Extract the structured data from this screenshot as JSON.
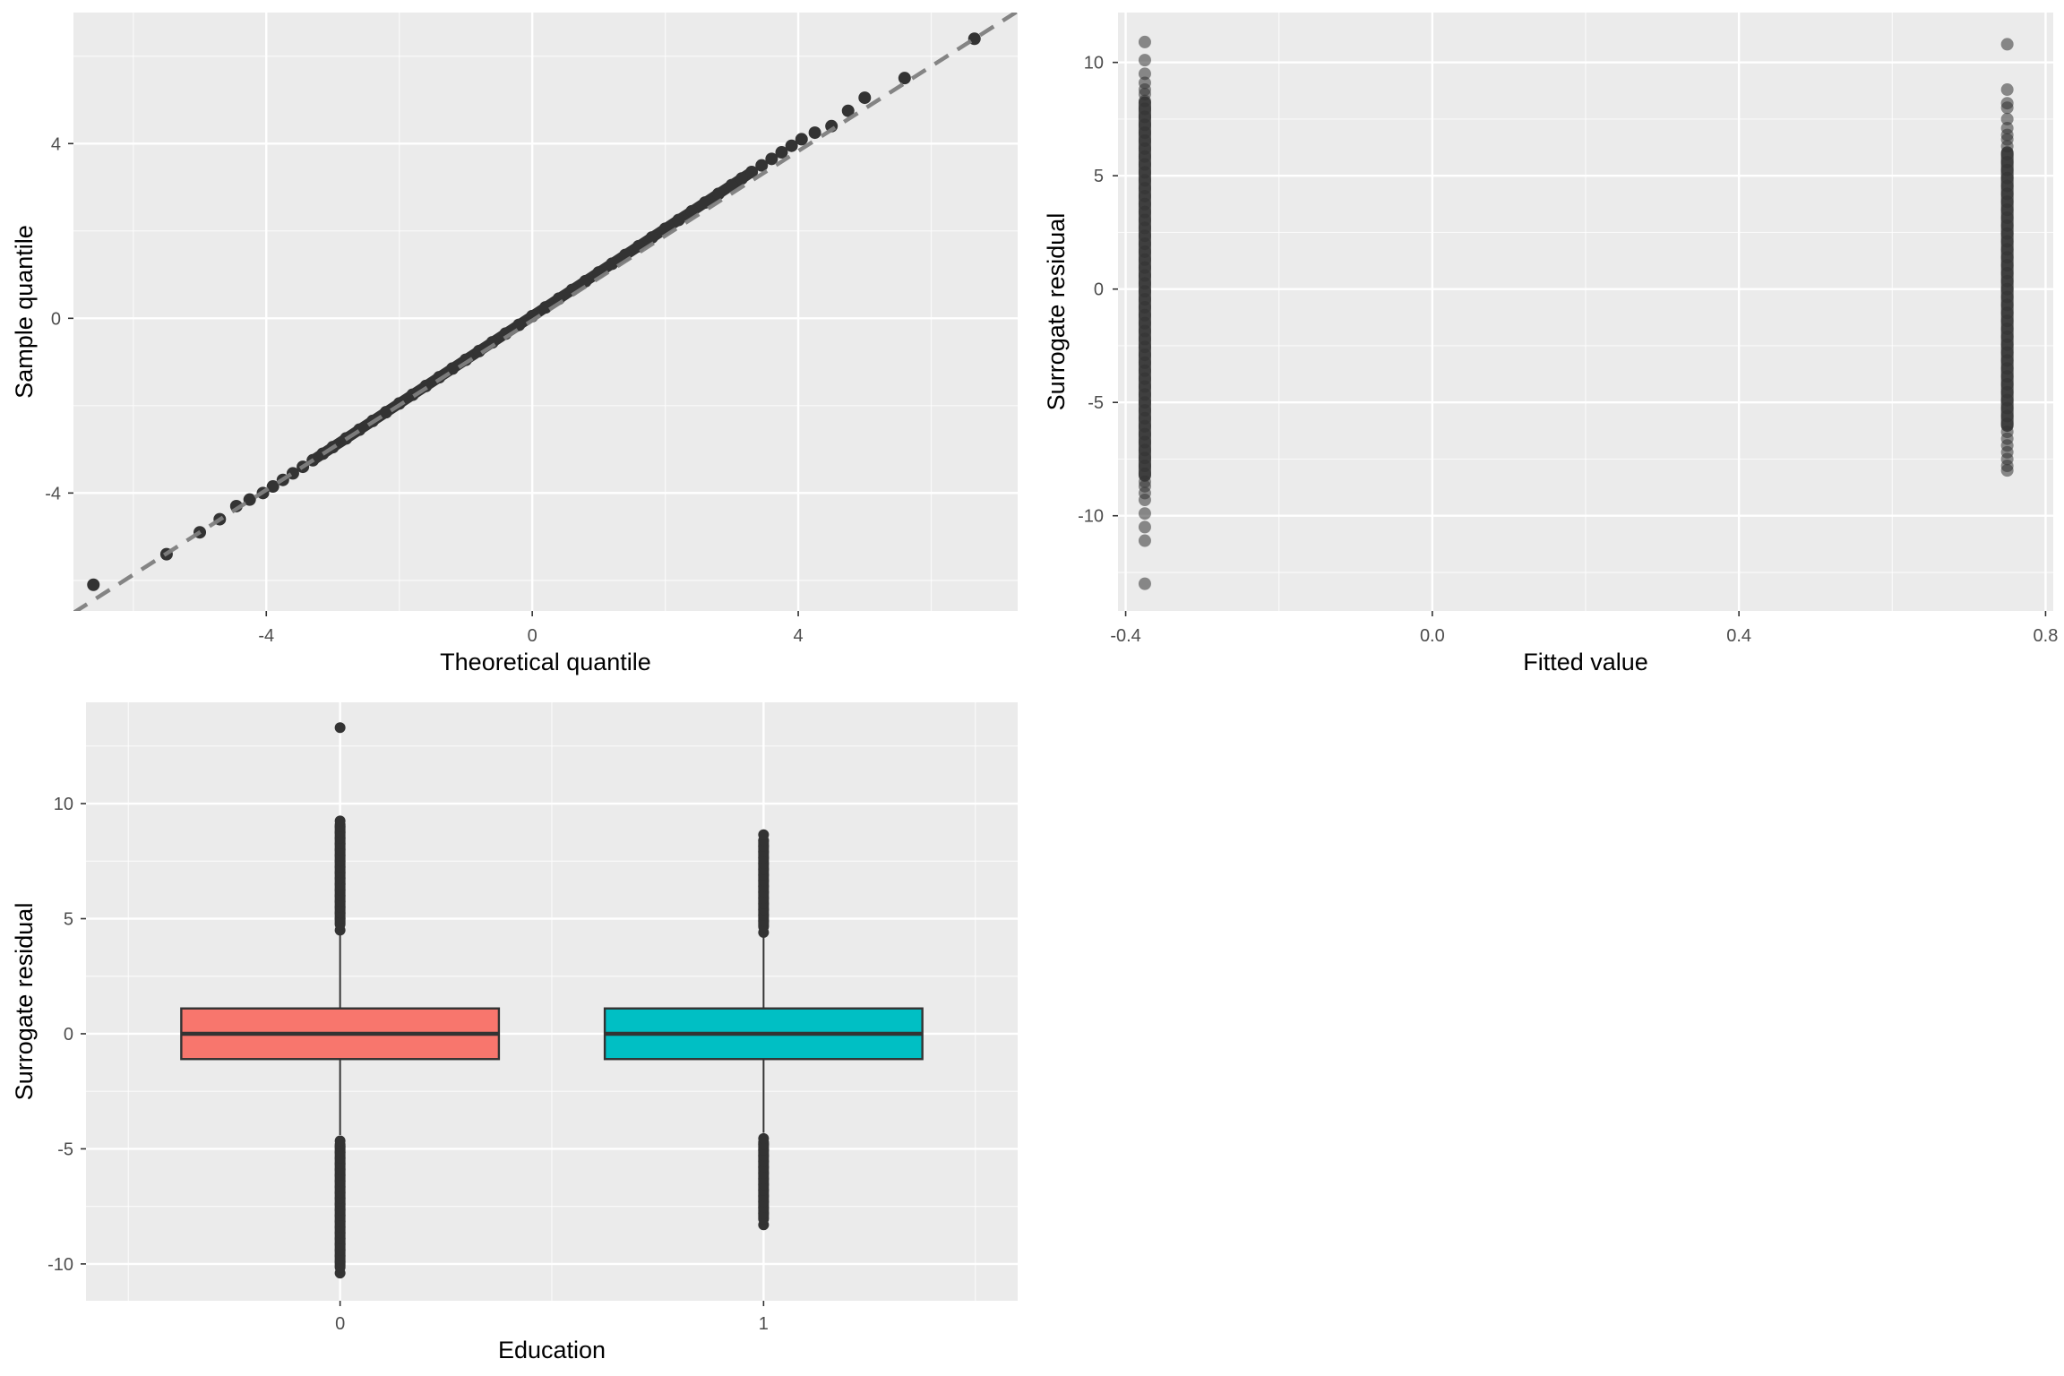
{
  "chart_data": [
    {
      "type": "scatter",
      "subtype": "qq-plot",
      "xlabel": "Theoretical quantile",
      "ylabel": "Sample quantile",
      "xlim": [
        -6.9,
        7.3
      ],
      "ylim": [
        -6.7,
        7.0
      ],
      "xticks": [
        -4,
        0,
        4
      ],
      "yticks": [
        -4,
        0,
        4
      ],
      "xtick_labels": [
        "-4",
        "0",
        "4"
      ],
      "ytick_labels": [
        "-4",
        "0",
        "4"
      ],
      "grid": true,
      "reference_line": {
        "slope": 0.97,
        "intercept": -0.05,
        "style": "dashed",
        "color": "#7f7f7f"
      },
      "point_color": "#333333",
      "points": {
        "x": [
          -6.6,
          -5.5,
          -5.0,
          -4.7,
          -4.45,
          -4.25,
          -4.05,
          -3.9,
          -3.75,
          -3.6,
          -3.45,
          -3.3,
          -3.15,
          -3.0,
          -2.8,
          -2.6,
          -2.4,
          -2.2,
          -2.0,
          -1.8,
          -1.6,
          -1.4,
          -1.2,
          -1.0,
          -0.8,
          -0.6,
          -0.4,
          -0.2,
          0.0,
          0.2,
          0.4,
          0.6,
          0.8,
          1.0,
          1.2,
          1.4,
          1.6,
          1.8,
          2.0,
          2.2,
          2.4,
          2.6,
          2.8,
          3.0,
          3.15,
          3.3,
          3.45,
          3.6,
          3.75,
          3.9,
          4.05,
          4.25,
          4.5,
          4.75,
          5.0,
          5.6,
          6.65
        ],
        "y": [
          -6.1,
          -5.4,
          -4.9,
          -4.6,
          -4.3,
          -4.15,
          -4.0,
          -3.85,
          -3.7,
          -3.55,
          -3.4,
          -3.25,
          -3.1,
          -2.95,
          -2.75,
          -2.55,
          -2.35,
          -2.15,
          -1.95,
          -1.75,
          -1.55,
          -1.35,
          -1.15,
          -0.95,
          -0.75,
          -0.55,
          -0.35,
          -0.15,
          0.05,
          0.25,
          0.45,
          0.65,
          0.85,
          1.05,
          1.25,
          1.45,
          1.65,
          1.85,
          2.05,
          2.25,
          2.45,
          2.65,
          2.85,
          3.05,
          3.2,
          3.35,
          3.5,
          3.65,
          3.8,
          3.95,
          4.1,
          4.25,
          4.4,
          4.75,
          5.05,
          5.5,
          6.4
        ]
      }
    },
    {
      "type": "scatter",
      "xlabel": "Fitted value",
      "ylabel": "Surrogate residual",
      "xlim": [
        -0.41,
        0.81
      ],
      "ylim": [
        -14.2,
        12.2
      ],
      "xticks": [
        -0.4,
        0.0,
        0.4,
        0.8
      ],
      "yticks": [
        -10,
        -5,
        0,
        5,
        10
      ],
      "xtick_labels": [
        "-0.4",
        "0.0",
        "0.4",
        "0.8"
      ],
      "ytick_labels": [
        "-10",
        "-5",
        "0",
        "5",
        "10"
      ],
      "grid": true,
      "point_color": "#333333",
      "point_opacity": 0.55,
      "groups": [
        {
          "x": -0.375,
          "dense_range": [
            -8.5,
            8.5
          ],
          "outliers": [
            10.9,
            10.1,
            9.5,
            9.1,
            8.8,
            8.6,
            -8.7,
            -9.0,
            -9.3,
            -9.9,
            -10.5,
            -11.1,
            -13.0
          ]
        },
        {
          "x": 0.75,
          "dense_range": [
            -6.3,
            6.3
          ],
          "outliers": [
            10.8,
            8.8,
            8.2,
            8.0,
            7.5,
            7.1,
            6.8,
            6.6,
            -6.6,
            -6.9,
            -7.2,
            -7.5,
            -7.8,
            -8.0
          ]
        }
      ]
    },
    {
      "type": "box",
      "xlabel": "Education",
      "ylabel": "Surrogate residual",
      "categories": [
        "0",
        "1"
      ],
      "ylim": [
        -11.6,
        14.4
      ],
      "yticks": [
        -10,
        -5,
        0,
        5,
        10
      ],
      "ytick_labels": [
        "-10",
        "-5",
        "0",
        "5",
        "10"
      ],
      "grid": true,
      "series": [
        {
          "name": "0",
          "color": "#F8766D",
          "q1": -1.1,
          "median": 0.0,
          "q3": 1.1,
          "whisker_low": -4.4,
          "whisker_high": 4.4,
          "outlier_range_high": [
            4.5,
            9.4
          ],
          "outlier_range_low": [
            -10.4,
            -4.5
          ],
          "extra_outliers": [
            13.3
          ]
        },
        {
          "name": "1",
          "color": "#00BFC4",
          "q1": -1.1,
          "median": 0.0,
          "q3": 1.1,
          "whisker_low": -4.3,
          "whisker_high": 4.3,
          "outlier_range_high": [
            4.4,
            8.7
          ],
          "outlier_range_low": [
            -8.3,
            -4.4
          ],
          "extra_outliers": []
        }
      ]
    }
  ]
}
